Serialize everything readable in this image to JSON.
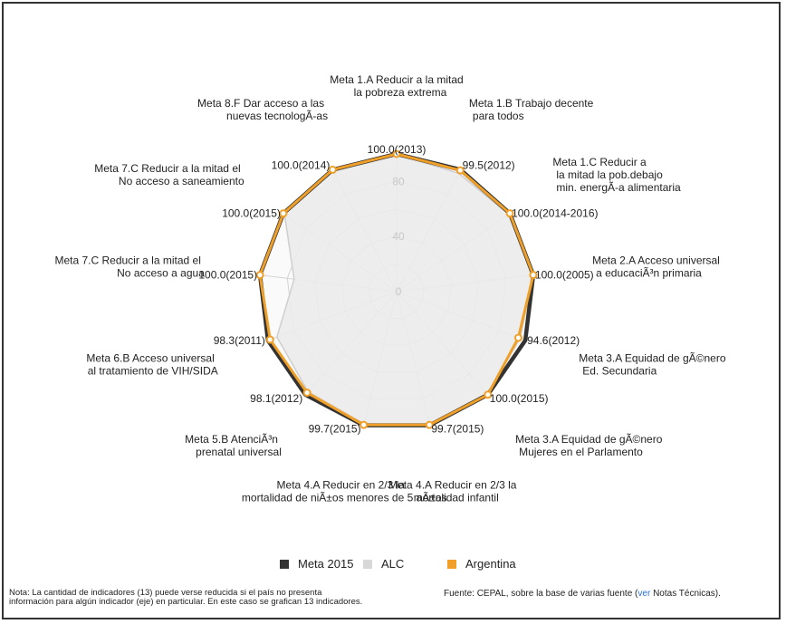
{
  "colors": {
    "meta": "#333333",
    "alc": "#d8d8d8",
    "argentina": "#f0a028",
    "alc_fill": "#ebebeb"
  },
  "chart_data": {
    "type": "radar",
    "rmax": 100,
    "tick_labels": [
      "0",
      "40",
      "80"
    ],
    "tick_values": [
      0,
      40,
      80
    ],
    "axes": [
      {
        "label": [
          "Meta 1.A Reducir a la mitad",
          "la pobreza extrema"
        ],
        "value_label": "100.0(2013)"
      },
      {
        "label": [
          "Meta 1.B Trabajo decente",
          "para todos"
        ],
        "value_label": "99.5(2012)"
      },
      {
        "label": [
          "Meta 1.C Reducir a",
          "la mitad la pob.debajo",
          "min. energÃ-a alimentaria"
        ],
        "value_label": "100.0(2014-2016)"
      },
      {
        "label": [
          "Meta 2.A Acceso universal",
          "a educaciÃ³n primaria"
        ],
        "value_label": "100.0(2005)"
      },
      {
        "label": [
          "Meta 3.A Equidad de gÃ©nero",
          "Ed. Secundaria"
        ],
        "value_label": "94.6(2012)"
      },
      {
        "label": [
          "Meta 3.A Equidad de gÃ©nero",
          "Mujeres en el Parlamento"
        ],
        "value_label": "100.0(2015)"
      },
      {
        "label": [
          "Meta 4.A Reducir en 2/3 la",
          "mortalidad infantil"
        ],
        "value_label": "99.7(2015)"
      },
      {
        "label": [
          "Meta 4.A Reducir en 2/3 la",
          "mortalidad de niÃ±os menores de 5 aÃ±os"
        ],
        "value_label": "99.7(2015)"
      },
      {
        "label": [
          "Meta 5.B AtenciÃ³n",
          "prenatal universal"
        ],
        "value_label": "98.1(2012)"
      },
      {
        "label": [
          "Meta 6.B Acceso universal",
          "al tratamiento de VIH/SIDA"
        ],
        "value_label": "98.3(2011)"
      },
      {
        "label": [
          "Meta 7.C Reducir a la mitad el",
          "No acceso a agua"
        ],
        "value_label": "100.0(2015)"
      },
      {
        "label": [
          "Meta 7.C Reducir a la mitad el",
          "No acceso a saneamiento"
        ],
        "value_label": "100.0(2015)"
      },
      {
        "label": [
          "Meta 8.F Dar acceso a las",
          "nuevas tecnologÃ-as"
        ],
        "value_label": "100.0(2014)"
      }
    ],
    "series": [
      {
        "name": "Meta 2015",
        "values": [
          100,
          100,
          100,
          100,
          100,
          100,
          100,
          100,
          100,
          100,
          100,
          100,
          100
        ]
      },
      {
        "name": "ALC",
        "values": [
          100,
          97,
          99,
          100,
          96,
          99,
          99,
          99,
          97,
          93,
          75,
          99,
          99
        ]
      },
      {
        "name": "Argentina",
        "values": [
          100,
          99.5,
          100,
          100,
          94.6,
          100,
          99.7,
          99.7,
          98.1,
          98.3,
          100,
          100,
          100
        ]
      }
    ]
  },
  "legend": {
    "meta": "Meta 2015",
    "alc": "ALC",
    "argentina": "Argentina"
  },
  "note": "Nota: La cantidad de indicadores (13) puede verse reducida si el país no presenta información para algún indicador (eje) en particular. En este caso se grafican 13 indicadores.",
  "source": {
    "prefix": "Fuente: CEPAL, sobre la base de varias fuente (",
    "link": "ver",
    "suffix": " Notas Técnicas)."
  }
}
